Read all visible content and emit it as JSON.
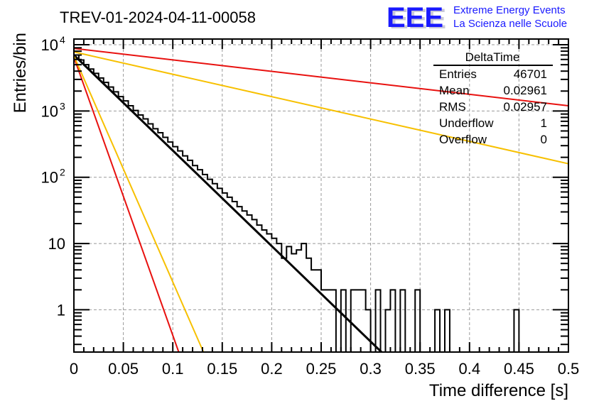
{
  "chart_data": {
    "type": "bar",
    "subtype": "histogram-step",
    "title": "TREV-01-2024-04-11-00058",
    "xlabel": "Time difference [s]",
    "ylabel": "Entries/bin",
    "xlim": [
      0,
      0.5
    ],
    "ylim": [
      0.23,
      12200
    ],
    "yscale": "log",
    "grid": true,
    "x_ticks": [
      "0",
      "0.05",
      "0.1",
      "0.15",
      "0.2",
      "0.25",
      "0.3",
      "0.35",
      "0.4",
      "0.45",
      "0.5"
    ],
    "x_tick_values": [
      0,
      0.05,
      0.1,
      0.15,
      0.2,
      0.25,
      0.3,
      0.35,
      0.4,
      0.45,
      0.5
    ],
    "y_ticks": [
      {
        "value": 10000,
        "base": "10",
        "exp": "4"
      },
      {
        "value": 1000,
        "base": "10",
        "exp": "3"
      },
      {
        "value": 100,
        "base": "10",
        "exp": "2"
      },
      {
        "value": 10,
        "base": "10",
        "exp": ""
      },
      {
        "value": 1,
        "base": "1",
        "exp": ""
      }
    ],
    "bin_width": 0.005,
    "bins": [
      7000,
      5900,
      5000,
      4300,
      3700,
      3150,
      2700,
      2300,
      1950,
      1650,
      1420,
      1200,
      1020,
      870,
      760,
      640,
      540,
      470,
      400,
      340,
      290,
      250,
      210,
      180,
      150,
      130,
      110,
      93,
      80,
      68,
      58,
      50,
      43,
      36,
      31,
      27,
      23,
      19,
      16,
      14,
      12,
      10,
      6,
      9,
      7,
      8,
      10,
      6,
      4,
      4,
      2,
      2,
      2,
      0,
      2,
      0,
      2,
      2,
      2,
      1,
      0,
      2,
      0,
      1,
      2,
      0,
      2,
      0,
      0,
      2,
      0,
      0,
      0,
      1,
      0,
      1,
      0,
      0,
      0,
      0,
      0,
      0,
      0,
      0,
      0,
      0,
      0,
      0,
      0,
      1,
      0,
      0,
      0,
      0,
      0,
      0,
      0,
      0,
      0,
      0
    ],
    "fits": [
      {
        "name": "fit-black",
        "color": "#000000",
        "x0": 0,
        "y0": 7000,
        "x1": 0.311,
        "y1": 0.23
      },
      {
        "name": "fit-red-steep",
        "color": "#e8110f",
        "x0": 0,
        "y0": 6500,
        "x1": 0.106,
        "y1": 0.23
      },
      {
        "name": "fit-yellow-steep",
        "color": "#f7c000",
        "x0": 0,
        "y0": 6800,
        "x1": 0.131,
        "y1": 0.23
      },
      {
        "name": "fit-red-shallow",
        "color": "#e8110f",
        "x0": 0,
        "y0": 8800,
        "x1": 0.5,
        "y1": 1200
      },
      {
        "name": "fit-yellow-shallow",
        "color": "#f7c000",
        "x0": 0,
        "y0": 7800,
        "x1": 0.5,
        "y1": 160
      }
    ],
    "stats": {
      "title": "DeltaTime",
      "rows": [
        {
          "label": "Entries",
          "value": "46701"
        },
        {
          "label": "Mean",
          "value": "0.02961"
        },
        {
          "label": "RMS",
          "value": "0.02957"
        },
        {
          "label": "Underflow",
          "value": "1"
        },
        {
          "label": "Overflow",
          "value": "0"
        }
      ]
    }
  },
  "logo": {
    "mark": "EEE",
    "line1": "Extreme Energy Events",
    "line2": "La Scienza nelle Scuole",
    "color": "#1a1aff"
  }
}
